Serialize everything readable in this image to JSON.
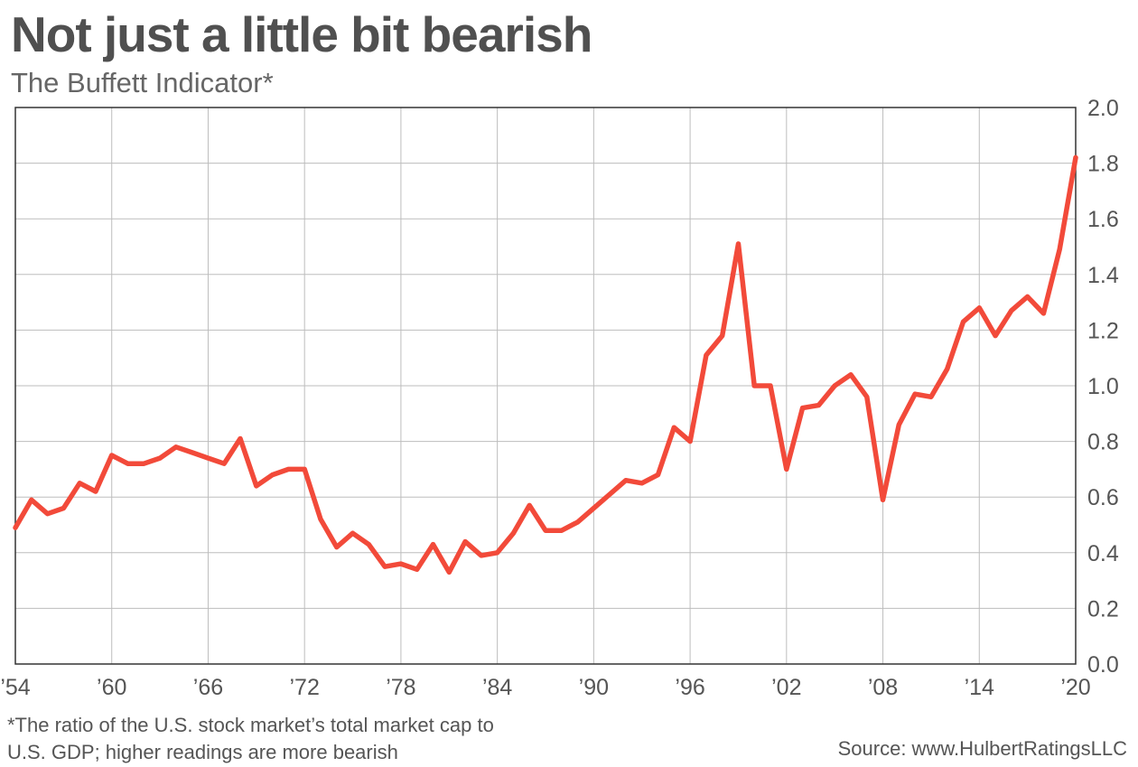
{
  "title": "Not just a little bit bearish",
  "subtitle": "The Buffett Indicator*",
  "footnote_lines": [
    "*The ratio of the U.S. stock market’s total market cap to",
    "U.S. GDP; higher readings are more bearish"
  ],
  "source": "Source: www.HulbertRatingsLLC",
  "chart_data": {
    "type": "line",
    "title": "Not just a little bit bearish",
    "subtitle": "The Buffett Indicator*",
    "xlabel": "",
    "ylabel": "",
    "xlim": [
      1954,
      2020
    ],
    "ylim": [
      0,
      2.0
    ],
    "grid": true,
    "legend": "none",
    "line_color": "#f24a3a",
    "x_tick_values": [
      1954,
      1960,
      1966,
      1972,
      1978,
      1984,
      1990,
      1996,
      2002,
      2008,
      2014,
      2020
    ],
    "x_tick_labels": [
      "’54",
      "’60",
      "’66",
      "’72",
      "’78",
      "’84",
      "’90",
      "’96",
      "’02",
      "’08",
      "’14",
      "’20"
    ],
    "y_tick_values": [
      0,
      0.2,
      0.4,
      0.6,
      0.8,
      1.0,
      1.2,
      1.4,
      1.6,
      1.8,
      2.0
    ],
    "y_tick_labels": [
      "0.0",
      "0.2",
      "0.4",
      "0.6",
      "0.8",
      "1.0",
      "1.2",
      "1.4",
      "1.6",
      "1.8",
      "2.0"
    ],
    "series": [
      {
        "x": [
          1954,
          1955,
          1956,
          1957,
          1958,
          1959,
          1960,
          1961,
          1962,
          1963,
          1964,
          1965,
          1966,
          1967,
          1968,
          1969,
          1970,
          1971,
          1972,
          1973,
          1974,
          1975,
          1976,
          1977,
          1978,
          1979,
          1980,
          1981,
          1982,
          1983,
          1984,
          1985,
          1986,
          1987,
          1988,
          1989,
          1990,
          1991,
          1992,
          1993,
          1994,
          1995,
          1996,
          1997,
          1998,
          1999,
          2000,
          2001,
          2002,
          2003,
          2004,
          2005,
          2006,
          2007,
          2008,
          2009,
          2010,
          2011,
          2012,
          2013,
          2014,
          2015,
          2016,
          2017,
          2018,
          2019,
          2020
        ],
        "values": [
          0.49,
          0.59,
          0.54,
          0.56,
          0.65,
          0.62,
          0.75,
          0.72,
          0.72,
          0.74,
          0.78,
          0.76,
          0.74,
          0.72,
          0.81,
          0.64,
          0.68,
          0.7,
          0.7,
          0.52,
          0.42,
          0.47,
          0.43,
          0.35,
          0.36,
          0.34,
          0.43,
          0.33,
          0.44,
          0.39,
          0.4,
          0.47,
          0.57,
          0.48,
          0.48,
          0.51,
          0.56,
          0.61,
          0.66,
          0.65,
          0.68,
          0.85,
          0.8,
          1.11,
          1.18,
          1.51,
          1.0,
          1.0,
          0.7,
          0.92,
          0.93,
          1.0,
          1.04,
          0.96,
          0.59,
          0.86,
          0.97,
          0.96,
          1.06,
          1.23,
          1.28,
          1.18,
          1.27,
          1.32,
          1.26,
          1.49,
          1.82
        ]
      }
    ]
  }
}
